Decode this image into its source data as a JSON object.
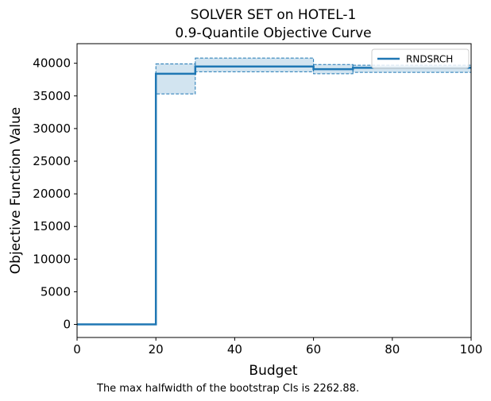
{
  "chart_data": {
    "type": "line",
    "title_line1": "SOLVER SET on HOTEL-1",
    "title_line2": "0.9-Quantile Objective Curve",
    "xlabel": "Budget",
    "ylabel": "Objective Function Value",
    "xlim": [
      0,
      100
    ],
    "ylim": [
      -2000,
      43000
    ],
    "xticks": [
      0,
      20,
      40,
      60,
      80,
      100
    ],
    "xtick_labels": [
      "0",
      "20",
      "40",
      "60",
      "80",
      "100"
    ],
    "yticks": [
      0,
      5000,
      10000,
      15000,
      20000,
      25000,
      30000,
      35000,
      40000
    ],
    "ytick_labels": [
      "0",
      "5000",
      "10000",
      "15000",
      "20000",
      "25000",
      "30000",
      "35000",
      "40000"
    ],
    "grid": false,
    "legend_position": "top-right",
    "series": [
      {
        "name": "RNDSRCH",
        "color": "#1f77b4",
        "step": "post",
        "x": [
          0,
          20,
          30,
          60,
          70,
          100
        ],
        "y": [
          0,
          38400,
          39500,
          39100,
          39300,
          39400
        ],
        "ci_lower": [
          0,
          35300,
          38700,
          38400,
          38600,
          38700
        ],
        "ci_upper": [
          0,
          39900,
          40800,
          39800,
          39700,
          39800
        ]
      }
    ],
    "footnote": "The max halfwidth of the bootstrap CIs is 2262.88."
  }
}
